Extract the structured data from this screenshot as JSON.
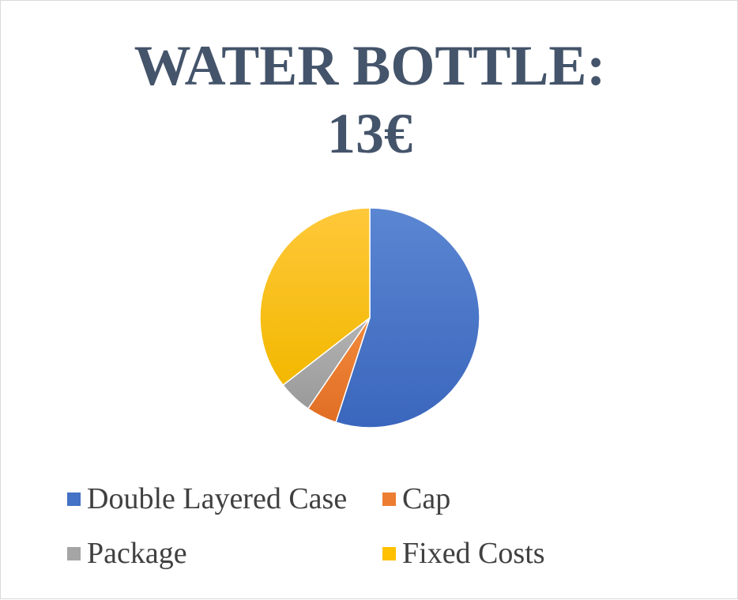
{
  "chart_data": {
    "type": "pie",
    "title": "WATER BOTTLE:",
    "subtitle": "13€",
    "labels": [
      "Double Layered Case",
      "Cap",
      "Package",
      "Fixed Costs"
    ],
    "values": [
      55,
      4.5,
      5,
      35.5
    ],
    "colors": [
      "#4472c4",
      "#ed7d31",
      "#a5a5a5",
      "#ffc000"
    ],
    "legend_position": "bottom"
  }
}
